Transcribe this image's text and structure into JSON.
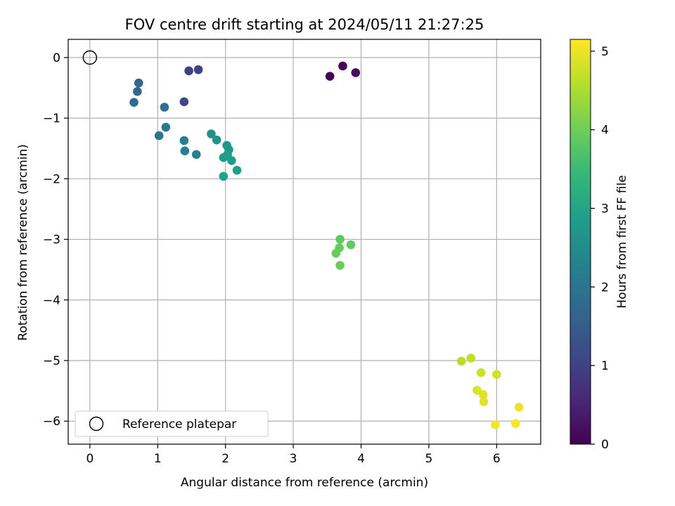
{
  "chart_data": {
    "type": "scatter",
    "title": "FOV centre drift starting at 2024/05/11 21:27:25",
    "xlabel": "Angular distance from reference (arcmin)",
    "ylabel": "Rotation from reference (arcmin)",
    "xlim": [
      -0.32,
      6.65
    ],
    "ylim": [
      -6.38,
      0.3
    ],
    "xticks": [
      0,
      1,
      2,
      3,
      4,
      5,
      6
    ],
    "yticks": [
      0,
      -1,
      -2,
      -3,
      -4,
      -5,
      -6
    ],
    "xtick_labels": [
      "0",
      "1",
      "2",
      "3",
      "4",
      "5",
      "6"
    ],
    "ytick_labels": [
      "0",
      "−1",
      "−2",
      "−3",
      "−4",
      "−5",
      "−6"
    ],
    "grid": true,
    "legend": {
      "position": "lower-left",
      "entries": [
        "Reference platepar"
      ]
    },
    "reference_point": {
      "x": 0,
      "y": 0,
      "marker": "open-circle"
    },
    "colorbar": {
      "label": "Hours from first FF file",
      "range": [
        0,
        5.15
      ],
      "ticks": [
        0,
        1,
        2,
        3,
        4,
        5
      ],
      "tick_labels": [
        "0",
        "1",
        "2",
        "3",
        "4",
        "5"
      ],
      "colormap": "viridis"
    },
    "points": [
      {
        "x": 3.54,
        "y": -0.31,
        "c": 0.02
      },
      {
        "x": 3.73,
        "y": -0.14,
        "c": 0.08
      },
      {
        "x": 3.92,
        "y": -0.25,
        "c": 0.14
      },
      {
        "x": 1.46,
        "y": -0.22,
        "c": 0.95
      },
      {
        "x": 1.6,
        "y": -0.2,
        "c": 1.0
      },
      {
        "x": 1.39,
        "y": -0.73,
        "c": 1.1
      },
      {
        "x": 0.72,
        "y": -0.42,
        "c": 1.72
      },
      {
        "x": 0.7,
        "y": -0.56,
        "c": 1.78
      },
      {
        "x": 0.65,
        "y": -0.74,
        "c": 1.82
      },
      {
        "x": 1.1,
        "y": -0.82,
        "c": 1.9
      },
      {
        "x": 1.02,
        "y": -1.29,
        "c": 2.0
      },
      {
        "x": 1.12,
        "y": -1.15,
        "c": 2.05
      },
      {
        "x": 1.39,
        "y": -1.37,
        "c": 2.15
      },
      {
        "x": 1.4,
        "y": -1.54,
        "c": 2.2
      },
      {
        "x": 1.57,
        "y": -1.6,
        "c": 2.3
      },
      {
        "x": 1.79,
        "y": -1.26,
        "c": 2.6
      },
      {
        "x": 1.87,
        "y": -1.36,
        "c": 2.65
      },
      {
        "x": 2.02,
        "y": -1.45,
        "c": 2.7
      },
      {
        "x": 2.05,
        "y": -1.52,
        "c": 2.75
      },
      {
        "x": 1.97,
        "y": -1.65,
        "c": 2.8
      },
      {
        "x": 2.03,
        "y": -1.6,
        "c": 2.82
      },
      {
        "x": 2.09,
        "y": -1.7,
        "c": 2.85
      },
      {
        "x": 2.17,
        "y": -1.86,
        "c": 2.9
      },
      {
        "x": 1.97,
        "y": -1.96,
        "c": 2.95
      },
      {
        "x": 3.69,
        "y": -3.0,
        "c": 3.85
      },
      {
        "x": 3.85,
        "y": -3.09,
        "c": 3.88
      },
      {
        "x": 3.68,
        "y": -3.14,
        "c": 3.92
      },
      {
        "x": 3.63,
        "y": -3.23,
        "c": 3.95
      },
      {
        "x": 3.69,
        "y": -3.43,
        "c": 3.98
      },
      {
        "x": 5.48,
        "y": -5.01,
        "c": 4.6
      },
      {
        "x": 5.62,
        "y": -4.96,
        "c": 4.65
      },
      {
        "x": 5.77,
        "y": -5.2,
        "c": 4.75
      },
      {
        "x": 6.0,
        "y": -5.23,
        "c": 4.8
      },
      {
        "x": 5.71,
        "y": -5.49,
        "c": 4.85
      },
      {
        "x": 5.8,
        "y": -5.56,
        "c": 4.9
      },
      {
        "x": 5.81,
        "y": -5.68,
        "c": 4.92
      },
      {
        "x": 6.33,
        "y": -5.77,
        "c": 5.0
      },
      {
        "x": 5.98,
        "y": -6.06,
        "c": 5.05
      },
      {
        "x": 6.28,
        "y": -6.04,
        "c": 5.1
      }
    ]
  }
}
